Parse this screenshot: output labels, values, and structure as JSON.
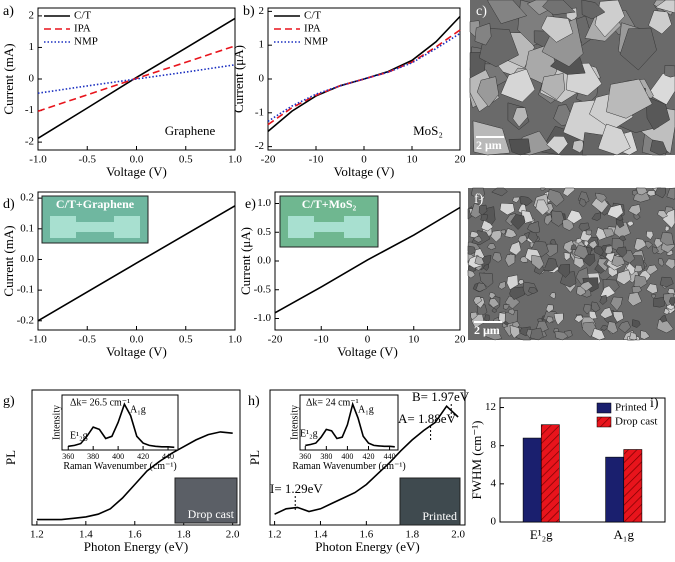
{
  "chart_data": [
    {
      "type": "line",
      "label": "a)",
      "xlabel": "Voltage (V)",
      "ylabel": "Current (mA)",
      "xlim": [
        -1,
        1
      ],
      "xticks": [
        {
          "value": -1,
          "label": "-1.0"
        },
        -0.5,
        {
          "value": 0,
          "label": "0.0"
        },
        0.5,
        {
          "value": 1,
          "label": "1.0"
        }
      ],
      "ylim": [
        -2.25,
        2.25
      ],
      "yticks": [
        -2,
        -1,
        0,
        1,
        2
      ],
      "legend": "upper left",
      "annotations": [
        "Graphene"
      ],
      "x": [
        -1,
        -0.5,
        0,
        0.5,
        1
      ],
      "series": [
        {
          "name": "C/T",
          "color": "#000000",
          "style": "solid",
          "values": [
            -1.88,
            -0.92,
            0.05,
            0.98,
            1.92
          ]
        },
        {
          "name": "IPA",
          "color": "#e8141c",
          "style": "dashed",
          "values": [
            -1.02,
            -0.5,
            0.02,
            0.53,
            1.05
          ]
        },
        {
          "name": "NMP",
          "color": "#1a2fc0",
          "style": "dotted",
          "values": [
            -0.45,
            -0.22,
            0,
            0.22,
            0.45
          ]
        }
      ]
    },
    {
      "type": "line",
      "label": "b)",
      "xlabel": "Voltage (V)",
      "ylabel": "Current (μA)",
      "xlim": [
        -20,
        20
      ],
      "xticks": [
        -20,
        -10,
        0,
        10,
        20
      ],
      "ylim": [
        -2.1,
        2.1
      ],
      "yticks": [
        -2,
        -1,
        0,
        1,
        2
      ],
      "legend": "upper left",
      "annotations": [
        "MoS₂"
      ],
      "x": [
        -20,
        -15,
        -10,
        -5,
        0,
        5,
        10,
        15,
        20
      ],
      "series": [
        {
          "name": "C/T",
          "color": "#000000",
          "style": "solid",
          "values": [
            -1.55,
            -0.95,
            -0.5,
            -0.2,
            0,
            0.22,
            0.55,
            1.1,
            1.85
          ]
        },
        {
          "name": "IPA",
          "color": "#e8141c",
          "style": "dashed",
          "values": [
            -1.35,
            -0.85,
            -0.48,
            -0.2,
            0,
            0.2,
            0.5,
            0.95,
            1.45
          ]
        },
        {
          "name": "NMP",
          "color": "#1a2fc0",
          "style": "dotted",
          "values": [
            -1.25,
            -0.8,
            -0.45,
            -0.2,
            0,
            0.2,
            0.48,
            0.9,
            1.35
          ]
        }
      ]
    },
    {
      "type": "image",
      "label": "c)",
      "scale_bar": "2 μm"
    },
    {
      "type": "line",
      "label": "d)",
      "xlabel": "Voltage (V)",
      "ylabel": "Current (mA)",
      "xlim": [
        -1,
        1
      ],
      "xticks": [
        {
          "value": -1,
          "label": "-1.0"
        },
        -0.5,
        {
          "value": 0,
          "label": "0.0"
        },
        0.5,
        {
          "value": 1,
          "label": "1.0"
        }
      ],
      "ylim": [
        -0.23,
        0.22
      ],
      "yticks": [
        -0.2,
        -0.1,
        {
          "value": 0,
          "label": "0.0"
        },
        0.1,
        0.2
      ],
      "inset_text": "C/T+Graphene",
      "x": [
        -1,
        0,
        1
      ],
      "series": [
        {
          "color": "#000000",
          "style": "solid",
          "values": [
            -0.2,
            -0.012,
            0.175
          ]
        }
      ]
    },
    {
      "type": "line",
      "label": "e)",
      "xlabel": "Voltage (V)",
      "ylabel": "Current (μA)",
      "xlim": [
        -20,
        20
      ],
      "xticks": [
        -20,
        -10,
        0,
        10,
        20
      ],
      "ylim": [
        -1.2,
        1.2
      ],
      "yticks": [
        {
          "value": -1,
          "label": "-1.0"
        },
        -0.5,
        {
          "value": 0,
          "label": "0.0"
        },
        0.5,
        {
          "value": 1,
          "label": "1.0"
        }
      ],
      "inset_text": "C/T+MoS₂",
      "x": [
        -20,
        -10,
        0,
        10,
        20
      ],
      "series": [
        {
          "color": "#000000",
          "style": "solid",
          "values": [
            -0.9,
            -0.45,
            0.02,
            0.45,
            0.93
          ]
        }
      ]
    },
    {
      "type": "image",
      "label": "f)",
      "scale_bar": "2 μm"
    },
    {
      "type": "line",
      "label": "g)",
      "xlabel": "Photon Energy (eV)",
      "ylabel": "PL",
      "xlim": [
        1.18,
        2.03
      ],
      "xticks": [
        1.2,
        1.4,
        1.6,
        1.8,
        {
          "value": 2,
          "label": "2.0"
        }
      ],
      "ylim": [
        0,
        1
      ],
      "photo_text": "Drop cast",
      "x": [
        1.2,
        1.25,
        1.3,
        1.35,
        1.4,
        1.45,
        1.5,
        1.55,
        1.6,
        1.65,
        1.7,
        1.75,
        1.8,
        1.85,
        1.9,
        1.95,
        2.0
      ],
      "series": [
        {
          "color": "#000000",
          "style": "solid",
          "values": [
            0.04,
            0.04,
            0.04,
            0.05,
            0.06,
            0.08,
            0.12,
            0.2,
            0.3,
            0.4,
            0.47,
            0.53,
            0.58,
            0.63,
            0.67,
            0.69,
            0.68
          ]
        }
      ],
      "inset": {
        "type": "line",
        "xlabel": "Raman Wavenumber (cm⁻¹)",
        "ylabel": "Intensity",
        "xlim": [
          355,
          448
        ],
        "xticks": [
          360,
          380,
          400,
          420,
          440
        ],
        "ylim": [
          0,
          1.2
        ],
        "annotations": [
          "Δk= 26.5 cm⁻¹",
          "E¹₂g",
          "A₁g"
        ],
        "x": [
          360,
          365,
          370,
          375,
          380,
          385,
          390,
          395,
          400,
          405,
          410,
          415,
          420,
          425,
          430,
          435,
          440,
          445
        ],
        "series": [
          {
            "color": "#000000",
            "style": "solid",
            "values": [
              0.08,
              0.1,
              0.14,
              0.3,
              0.5,
              0.45,
              0.25,
              0.3,
              0.6,
              1.0,
              0.75,
              0.3,
              0.15,
              0.1,
              0.08,
              0.07,
              0.07,
              0.06
            ]
          }
        ]
      }
    },
    {
      "type": "line",
      "label": "h)",
      "xlabel": "Photon Energy (eV)",
      "ylabel": "PL",
      "xlim": [
        1.18,
        2.03
      ],
      "xticks": [
        1.2,
        1.4,
        1.6,
        1.8,
        {
          "value": 2,
          "label": "2.0"
        }
      ],
      "ylim": [
        0,
        1
      ],
      "photo_text": "Printed",
      "annotations": [
        "I= 1.29eV",
        "A= 1.88eV",
        "B= 1.97eV"
      ],
      "x": [
        1.2,
        1.25,
        1.3,
        1.35,
        1.4,
        1.45,
        1.5,
        1.55,
        1.6,
        1.65,
        1.7,
        1.75,
        1.8,
        1.85,
        1.9,
        1.95,
        2.0
      ],
      "series": [
        {
          "color": "#000000",
          "style": "solid",
          "values": [
            0.08,
            0.12,
            0.13,
            0.1,
            0.12,
            0.16,
            0.2,
            0.24,
            0.3,
            0.38,
            0.46,
            0.55,
            0.63,
            0.7,
            0.76,
            0.88,
            0.8
          ]
        }
      ],
      "inset": {
        "type": "line",
        "xlabel": "Raman Wavenumber (cm⁻¹)",
        "ylabel": "Intensity",
        "xlim": [
          355,
          448
        ],
        "xticks": [
          360,
          380,
          400,
          420,
          440
        ],
        "ylim": [
          0,
          1.2
        ],
        "annotations": [
          "Δk= 24 cm⁻¹",
          "E¹₂g",
          "A₁g"
        ],
        "x": [
          360,
          365,
          370,
          375,
          380,
          385,
          390,
          395,
          400,
          405,
          410,
          415,
          420,
          425,
          430,
          435,
          440,
          445
        ],
        "series": [
          {
            "color": "#000000",
            "style": "solid",
            "values": [
              0.1,
              0.12,
              0.15,
              0.28,
              0.45,
              0.42,
              0.25,
              0.28,
              0.55,
              1.0,
              0.7,
              0.3,
              0.15,
              0.1,
              0.09,
              0.08,
              0.08,
              0.07
            ]
          }
        ]
      }
    },
    {
      "type": "bar",
      "label": "i)",
      "ylabel": "FWHM (cm⁻¹)",
      "categories": [
        "E¹₂g",
        "A₁g"
      ],
      "ylim": [
        0,
        13
      ],
      "yticks": [
        0,
        4,
        8,
        12
      ],
      "legend": "upper right",
      "series": [
        {
          "name": "Printed",
          "color": "#1a1f6e",
          "values": [
            8.8,
            6.8
          ]
        },
        {
          "name": "Drop cast",
          "color": "#e8141c",
          "hatch": true,
          "values": [
            10.2,
            7.6
          ]
        }
      ]
    }
  ]
}
